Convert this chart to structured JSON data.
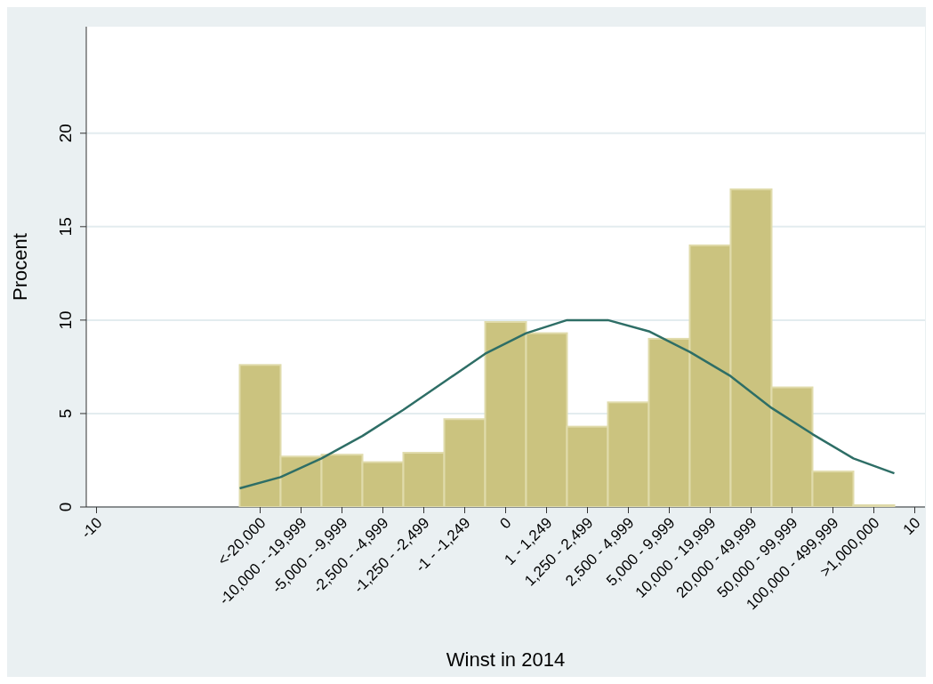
{
  "chart_data": {
    "type": "histogram",
    "xlabel": "Winst in 2014",
    "ylabel": "Procent",
    "bins": [
      -6.5,
      -5.5,
      -4.5,
      -3.5,
      -2.5,
      -1.5,
      -0.5,
      0.5,
      1.5,
      2.5,
      3.5,
      4.5,
      5.5,
      6.5,
      7.5,
      8.5,
      9.5
    ],
    "values": [
      7.6,
      2.7,
      2.8,
      2.4,
      2.9,
      4.7,
      9.9,
      9.3,
      4.3,
      5.6,
      9.0,
      14.0,
      17.0,
      6.4,
      1.9,
      0.1
    ],
    "color": "#cbc37f",
    "series": [
      {
        "type": "line",
        "color": "#2e6e66",
        "x": [
          -6.5,
          -5.5,
          -4.5,
          -3.5,
          -2.5,
          -1.5,
          -0.5,
          0.5,
          1.5,
          2.0,
          2.5,
          3.5,
          4.5,
          5.5,
          6.5,
          7.5,
          8.5,
          9.5
        ],
        "values": [
          1.0,
          1.6,
          2.6,
          3.8,
          5.2,
          6.7,
          8.2,
          9.3,
          10.0,
          10.0,
          10.0,
          9.4,
          8.3,
          7.0,
          5.3,
          3.9,
          2.6,
          1.8
        ]
      }
    ],
    "xlim": [
      -10.25,
      10.25
    ],
    "xticks": [
      {
        "value": -10,
        "label": "-10"
      },
      {
        "value": -6,
        "label": "<-20,000"
      },
      {
        "value": -5,
        "label": "-10,000 - -19,999"
      },
      {
        "value": -4,
        "label": "-5,000 - -9,999"
      },
      {
        "value": -3,
        "label": "-2,500 - -4,999"
      },
      {
        "value": -2,
        "label": "-1,250 - -2,499"
      },
      {
        "value": -1,
        "label": "-1 - -1,249"
      },
      {
        "value": 0,
        "label": "0"
      },
      {
        "value": 1,
        "label": "1 - 1,249"
      },
      {
        "value": 2,
        "label": "1,250 - 2,499"
      },
      {
        "value": 3,
        "label": "2,500 - 4,999"
      },
      {
        "value": 4,
        "label": "5,000 - 9,999"
      },
      {
        "value": 5,
        "label": "10,000 - 19,999"
      },
      {
        "value": 6,
        "label": "20,000 - 49,999"
      },
      {
        "value": 7,
        "label": "50,000 - 99,999"
      },
      {
        "value": 8,
        "label": "100,000 - 499,999"
      },
      {
        "value": 9,
        "label": ">1,000,000"
      },
      {
        "value": 10,
        "label": "10"
      }
    ],
    "ylim": [
      0,
      25.7
    ],
    "yticks": [
      0,
      5,
      10,
      15,
      20
    ],
    "grid": "y",
    "legend": false
  }
}
